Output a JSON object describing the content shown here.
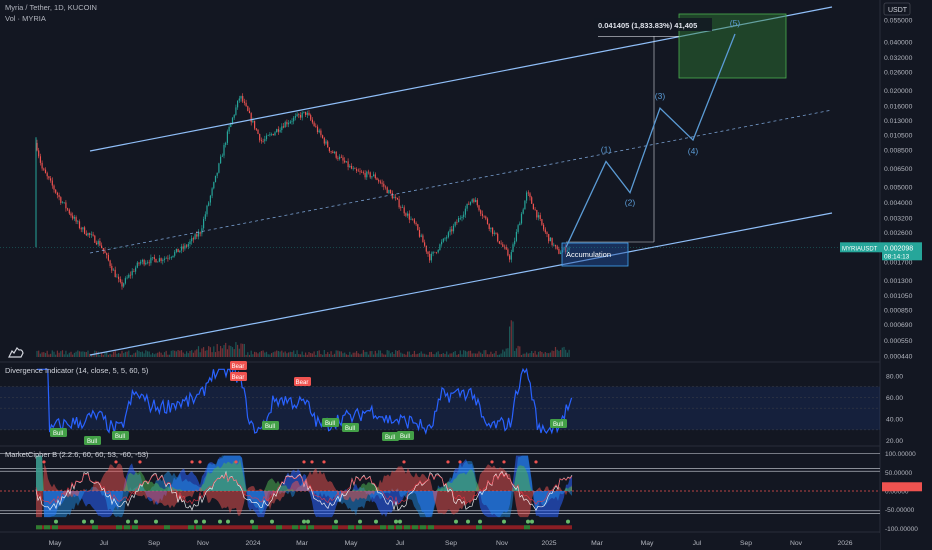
{
  "header": {
    "symbol_line": "Myria / Tether, 1D, KUCOIN",
    "volume_line": "Vol · MYRIA"
  },
  "currency": "USDT",
  "price_axis_labels": [
    "0.055000",
    "0.040000",
    "0.032000",
    "0.026000",
    "0.020000",
    "0.016000",
    "0.013000",
    "0.010500",
    "0.008500",
    "0.006500",
    "0.005000",
    "0.004000",
    "0.003200",
    "0.002600",
    "0.001700",
    "0.001300",
    "0.001050",
    "0.000850",
    "0.000690",
    "0.000550",
    "0.000440"
  ],
  "last_price": {
    "symbol": "MYRIAUSDT",
    "value": "0.002098",
    "countdown": "08:14:13"
  },
  "measure_label": "0.041405 (1,833.83%) 41,405",
  "accumulation_label": "Accumulation",
  "wave_labels": [
    "(1)",
    "(2)",
    "(3)",
    "(4)",
    "(5)"
  ],
  "time_labels": [
    "May",
    "Jul",
    "Sep",
    "Nov",
    "2024",
    "Mar",
    "May",
    "Jul",
    "Sep",
    "Nov",
    "2025",
    "Mar",
    "May",
    "Jul",
    "Sep",
    "Nov",
    "2026"
  ],
  "divergence": {
    "title": "Divergence Indicator (14, close, 5, 5, 60, 5)",
    "axis_labels": [
      "80.00",
      "60.00",
      "40.00",
      "20.00"
    ],
    "bull_label": "Bull",
    "bear_label": "Bear"
  },
  "cipher": {
    "title": "MarketCipher B (2.2.6, 60, 60, 53, -60, -53)",
    "axis_labels": [
      "100.00000",
      "50.00000",
      "0.00000",
      "-50.00000",
      "-100.00000"
    ]
  },
  "colors": {
    "background": "#131722",
    "channel": "#90bff9",
    "candle_up": "#26a69a",
    "candle_down": "#ef5350",
    "target_box": "#2e7d32",
    "accum_box": "#1e50a0",
    "wave_path": "#5b9bd5",
    "rsi": "#2962ff",
    "bull": "#43a047",
    "bear": "#ef5350"
  },
  "chart_data": {
    "type": "candlestick",
    "symbol": "Myria / Tether",
    "timeframe": "1D",
    "exchange": "KUCOIN",
    "price_scale": "log",
    "price_range": [
      0.00042,
      0.06
    ],
    "key_prices": {
      "start_spike": 0.0094,
      "low_jul_2023": 0.0012,
      "high_dec_2023": 0.0185,
      "high_mar_2024": 0.0145,
      "low_jul_2024": 0.0018,
      "high_sep_2024": 0.0043,
      "high_dec_2024": 0.0046,
      "last": 0.002098,
      "target": 0.041405
    },
    "projected_waves": [
      {
        "label": "(1)",
        "price": 0.0072
      },
      {
        "label": "(2)",
        "price": 0.0046
      },
      {
        "label": "(3)",
        "price": 0.0155
      },
      {
        "label": "(4)",
        "price": 0.0098
      },
      {
        "label": "(5)",
        "price": 0.045
      }
    ],
    "measurement": {
      "change": 0.041405,
      "percent": "1,833.83%",
      "ticks": 41405
    },
    "divergence_rsi_range": [
      15,
      90
    ],
    "divergence_signals": [
      "Bull",
      "Bull",
      "Bull",
      "Bear",
      "Bear",
      "Bull",
      "Bear",
      "Bull",
      "Bull",
      "Bull",
      "Bull",
      "Bull"
    ],
    "cipher_range": [
      -110,
      110
    ]
  }
}
